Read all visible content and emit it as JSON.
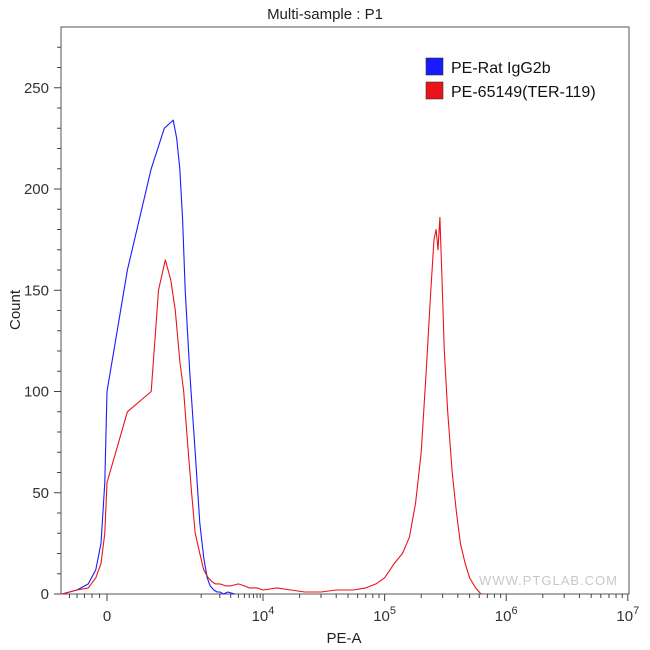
{
  "chart_data": {
    "type": "line",
    "title": "Multi-sample : P1",
    "xlabel": "PE-A",
    "ylabel": "Count",
    "x_scale": "biexponential",
    "ylim": [
      0,
      280
    ],
    "y_ticks": [
      0,
      50,
      100,
      150,
      200,
      250
    ],
    "x_ticks": [
      {
        "value": 0,
        "label": "0"
      },
      {
        "value": 10000,
        "label": "10",
        "exp": "4"
      },
      {
        "value": 100000,
        "label": "10",
        "exp": "5"
      },
      {
        "value": 1000000,
        "label": "10",
        "exp": "6"
      },
      {
        "value": 10000000,
        "label": "10",
        "exp": "7"
      }
    ],
    "grid": false,
    "legend_position": "top-right",
    "watermark": "WWW.PTGLAB.COM",
    "series": [
      {
        "name": "PE-Rat IgG2b",
        "color": "#1a1aff",
        "x": [
          -600,
          -400,
          -250,
          -150,
          -80,
          -30,
          0,
          50,
          150,
          250,
          350,
          400,
          450,
          500,
          550,
          650,
          800,
          950,
          1100,
          1250,
          1400,
          1600,
          1800,
          2000,
          2300,
          2700,
          3500
        ],
        "y": [
          0,
          2,
          5,
          12,
          25,
          55,
          100,
          160,
          210,
          230,
          234,
          225,
          210,
          185,
          150,
          110,
          70,
          35,
          18,
          8,
          4,
          2,
          1,
          1,
          0,
          1,
          0
        ]
      },
      {
        "name": "PE-65149(TER-119)",
        "color": "#e8141a",
        "x": [
          -600,
          -400,
          -250,
          -150,
          -80,
          -30,
          0,
          50,
          150,
          200,
          260,
          320,
          380,
          450,
          520,
          600,
          700,
          800,
          950,
          1100,
          1300,
          1500,
          1700,
          2000,
          2500,
          3000,
          4000,
          5000,
          6000,
          8000,
          10000,
          13000,
          17000,
          22000,
          30000,
          40000,
          55000,
          70000,
          85000,
          100000,
          120000,
          140000,
          160000,
          180000,
          200000,
          220000,
          240000,
          255000,
          265000,
          275000,
          285000,
          295000,
          310000,
          330000,
          360000,
          390000,
          420000,
          460000,
          500000,
          560000,
          620000
        ],
        "y": [
          0,
          2,
          3,
          8,
          15,
          30,
          55,
          90,
          100,
          150,
          165,
          155,
          140,
          115,
          100,
          75,
          50,
          30,
          20,
          12,
          8,
          6,
          5,
          5,
          4,
          4,
          5,
          4,
          3,
          3,
          2,
          3,
          2,
          1,
          1,
          2,
          2,
          3,
          5,
          8,
          15,
          20,
          28,
          45,
          70,
          110,
          150,
          175,
          180,
          170,
          186,
          160,
          120,
          90,
          60,
          40,
          25,
          15,
          8,
          3,
          0
        ]
      }
    ]
  },
  "legend": {
    "items": [
      {
        "label": "PE-Rat IgG2b",
        "color": "#1a1aff"
      },
      {
        "label": "PE-65149(TER-119)",
        "color": "#e8141a"
      }
    ]
  }
}
